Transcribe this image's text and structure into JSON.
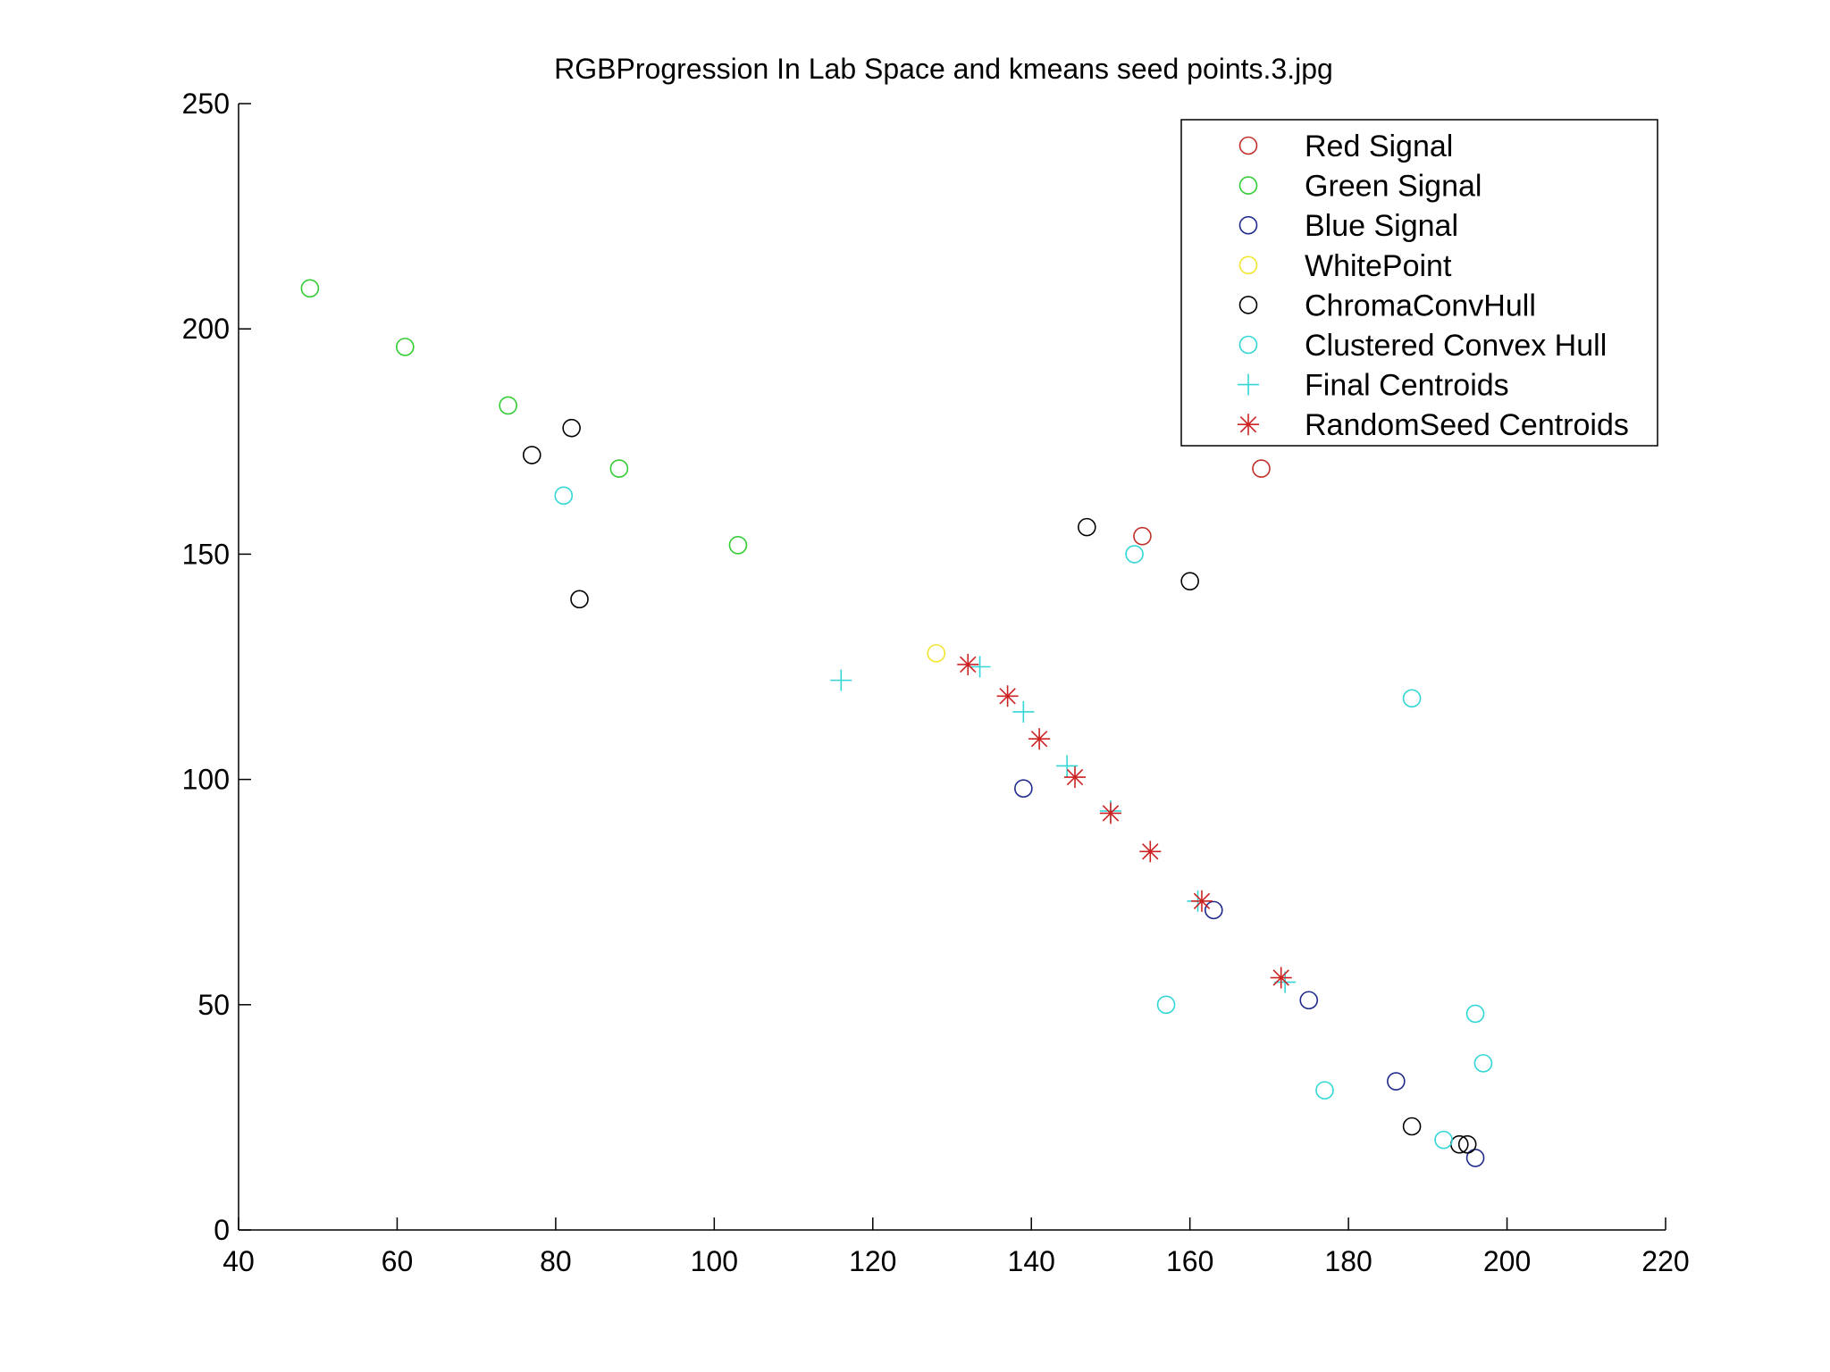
{
  "chart_data": {
    "type": "scatter",
    "title": "RGBProgression In Lab Space and kmeans seed points.3.jpg",
    "xlabel": "",
    "ylabel": "",
    "xlim": [
      40,
      220
    ],
    "ylim": [
      0,
      250
    ],
    "x_ticks": [
      40,
      60,
      80,
      100,
      120,
      140,
      160,
      180,
      200,
      220
    ],
    "y_ticks": [
      0,
      50,
      100,
      150,
      200,
      250
    ],
    "x_tick_labels": [
      "40",
      "60",
      "80",
      "100",
      "120",
      "140",
      "160",
      "180",
      "200",
      "220"
    ],
    "y_tick_labels": [
      "0",
      "50",
      "100",
      "150",
      "200",
      "250"
    ],
    "grid": false,
    "legend_position": "top-right",
    "series": [
      {
        "name": "Red Signal",
        "marker": "circle",
        "color": "#c0302b",
        "points": [
          [
            154,
            154
          ],
          [
            169,
            169
          ]
        ]
      },
      {
        "name": "Green Signal",
        "marker": "circle",
        "color": "#33cc33",
        "points": [
          [
            49,
            209
          ],
          [
            61,
            196
          ],
          [
            74,
            183
          ],
          [
            88,
            169
          ],
          [
            103,
            152
          ]
        ]
      },
      {
        "name": "Blue Signal",
        "marker": "circle",
        "color": "#1f2a8c",
        "points": [
          [
            139,
            98
          ],
          [
            163,
            71
          ],
          [
            175,
            51
          ],
          [
            186,
            33
          ],
          [
            196,
            16
          ]
        ]
      },
      {
        "name": "WhitePoint",
        "marker": "circle",
        "color": "#f2e52e",
        "points": [
          [
            128,
            128
          ]
        ]
      },
      {
        "name": "ChromaConvHull",
        "marker": "circle",
        "color": "#000000",
        "points": [
          [
            77,
            172
          ],
          [
            82,
            178
          ],
          [
            83,
            140
          ],
          [
            147,
            156
          ],
          [
            160,
            144
          ],
          [
            188,
            23
          ],
          [
            194,
            19
          ],
          [
            195,
            19
          ]
        ]
      },
      {
        "name": "Clustered Convex Hull",
        "marker": "circle",
        "color": "#33d6d6",
        "points": [
          [
            81,
            163
          ],
          [
            153,
            150
          ],
          [
            188,
            118
          ],
          [
            157,
            50
          ],
          [
            177,
            31
          ],
          [
            196,
            48
          ],
          [
            197,
            37
          ],
          [
            192,
            20
          ]
        ]
      },
      {
        "name": "Final Centroids",
        "marker": "plus",
        "color": "#33d6d6",
        "points": [
          [
            116,
            122
          ],
          [
            133.5,
            125
          ],
          [
            139,
            115
          ],
          [
            144.5,
            103
          ],
          [
            150,
            93
          ],
          [
            161,
            73
          ],
          [
            172,
            55
          ]
        ]
      },
      {
        "name": "RandomSeed Centroids",
        "marker": "asterisk",
        "color": "#cc2222",
        "points": [
          [
            132,
            125.5
          ],
          [
            137,
            118.5
          ],
          [
            141,
            109
          ],
          [
            145.5,
            100.5
          ],
          [
            150,
            92.5
          ],
          [
            155,
            84
          ],
          [
            161.5,
            73
          ],
          [
            171.5,
            56
          ]
        ]
      }
    ]
  }
}
